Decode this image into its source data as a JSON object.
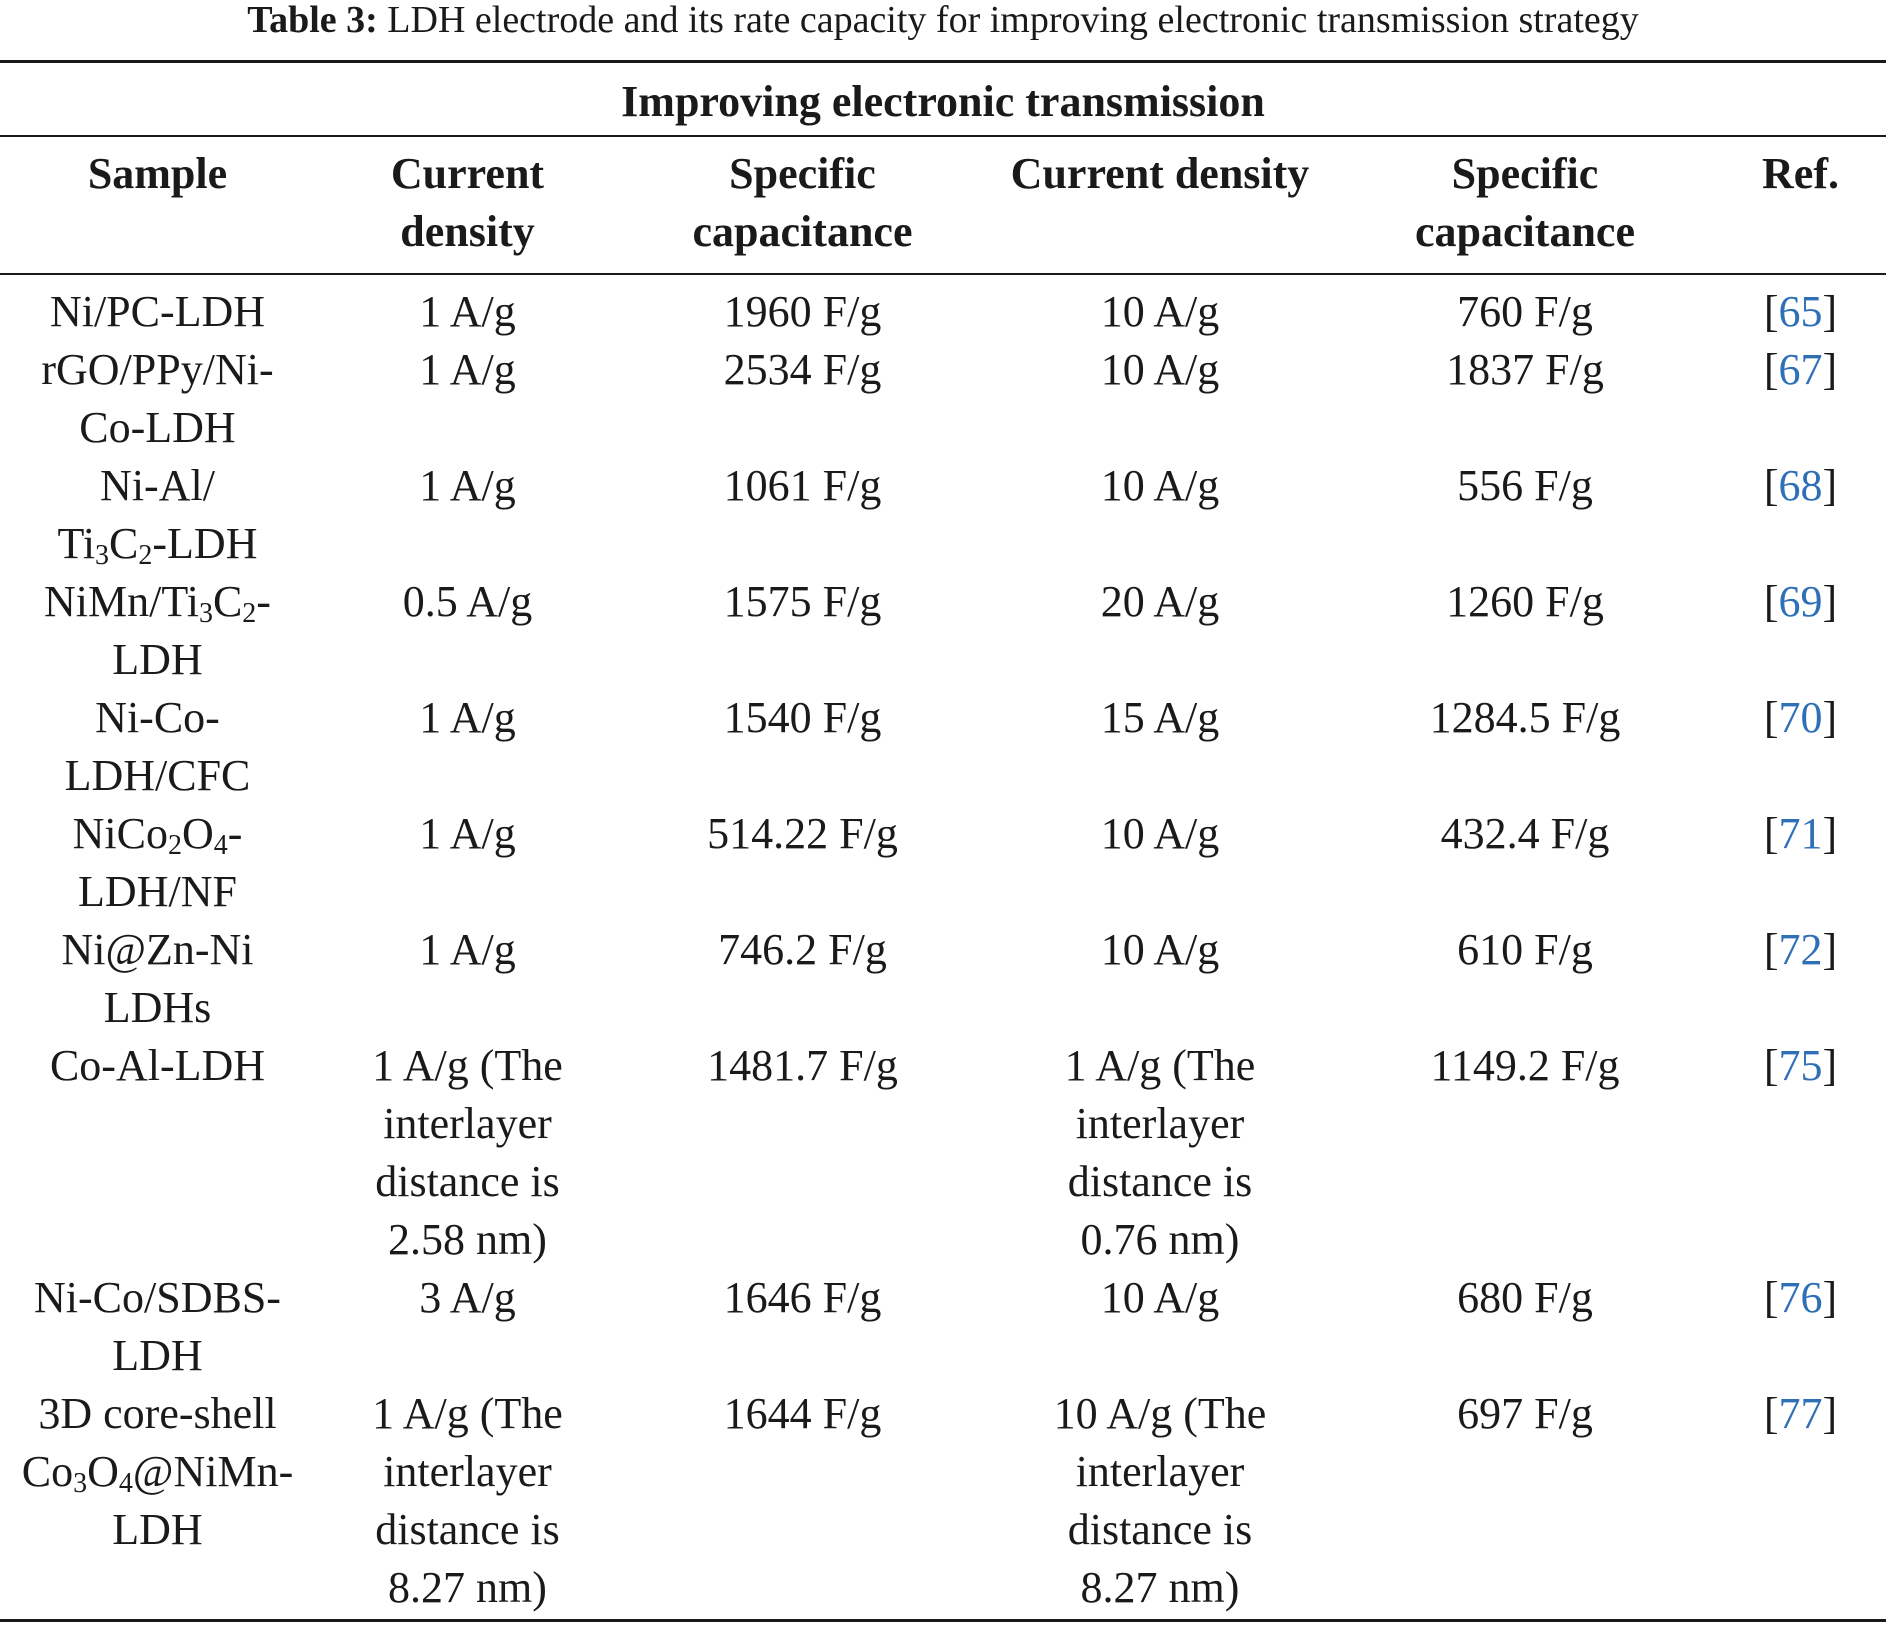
{
  "caption": {
    "label": "Table 3:",
    "text": " LDH electrode and its rate capacity for improving electronic transmission strategy"
  },
  "table": {
    "group_header": "Improving electronic transmission",
    "columns": {
      "sample": "Sample",
      "cd1": [
        "Current",
        "density"
      ],
      "sc1": [
        "Specific",
        "capacitance"
      ],
      "cd2": "Current density",
      "sc2": [
        "Specific",
        "capacitance"
      ],
      "ref": "Ref."
    },
    "rows": [
      {
        "sample": [
          "Ni/PC-LDH"
        ],
        "cd1": [
          "1 A/g"
        ],
        "sc1": "1960 F/g",
        "cd2": [
          "10 A/g"
        ],
        "sc2": "760 F/g",
        "ref": "65"
      },
      {
        "sample": [
          "rGO/PPy/Ni-",
          "Co-LDH"
        ],
        "cd1": [
          "1 A/g"
        ],
        "sc1": "2534 F/g",
        "cd2": [
          "10 A/g"
        ],
        "sc2": "1837 F/g",
        "ref": "67"
      },
      {
        "sample": [
          "Ni-Al/",
          "Ti3C2-LDH"
        ],
        "cd1": [
          "1 A/g"
        ],
        "sc1": "1061 F/g",
        "cd2": [
          "10 A/g"
        ],
        "sc2": "556 F/g",
        "ref": "68"
      },
      {
        "sample": [
          "NiMn/Ti3C2-",
          "LDH"
        ],
        "cd1": [
          "0.5 A/g"
        ],
        "sc1": "1575 F/g",
        "cd2": [
          "20 A/g"
        ],
        "sc2": "1260 F/g",
        "ref": "69"
      },
      {
        "sample": [
          "Ni-Co-",
          "LDH/CFC"
        ],
        "cd1": [
          "1 A/g"
        ],
        "sc1": "1540 F/g",
        "cd2": [
          "15 A/g"
        ],
        "sc2": "1284.5 F/g",
        "ref": "70"
      },
      {
        "sample": [
          "NiCo2O4-",
          "LDH/NF"
        ],
        "cd1": [
          "1 A/g"
        ],
        "sc1": "514.22 F/g",
        "cd2": [
          "10 A/g"
        ],
        "sc2": "432.4 F/g",
        "ref": "71"
      },
      {
        "sample": [
          "Ni@Zn-Ni",
          "LDHs"
        ],
        "cd1": [
          "1 A/g"
        ],
        "sc1": "746.2 F/g",
        "cd2": [
          "10 A/g"
        ],
        "sc2": "610 F/g",
        "ref": "72"
      },
      {
        "sample": [
          "Co-Al-LDH"
        ],
        "cd1": [
          "1 A/g (The",
          "interlayer",
          "distance is",
          "2.58 nm)"
        ],
        "sc1": "1481.7 F/g",
        "cd2": [
          "1 A/g (The",
          "interlayer",
          "distance is",
          "0.76 nm)"
        ],
        "sc2": "1149.2 F/g",
        "ref": "75"
      },
      {
        "sample": [
          "Ni-Co/SDBS-",
          "LDH"
        ],
        "cd1": [
          "3 A/g"
        ],
        "sc1": "1646 F/g",
        "cd2": [
          "10 A/g"
        ],
        "sc2": "680 F/g",
        "ref": "76"
      },
      {
        "sample": [
          "3D core-shell",
          "Co3O4@NiMn-",
          "LDH"
        ],
        "cd1": [
          "1 A/g (The",
          "interlayer",
          "distance is",
          "8.27 nm)"
        ],
        "sc1": "1644 F/g",
        "cd2": [
          "10 A/g (The",
          "interlayer",
          "distance is",
          "8.27 nm)"
        ],
        "sc2": "697 F/g",
        "ref": "77"
      }
    ]
  }
}
